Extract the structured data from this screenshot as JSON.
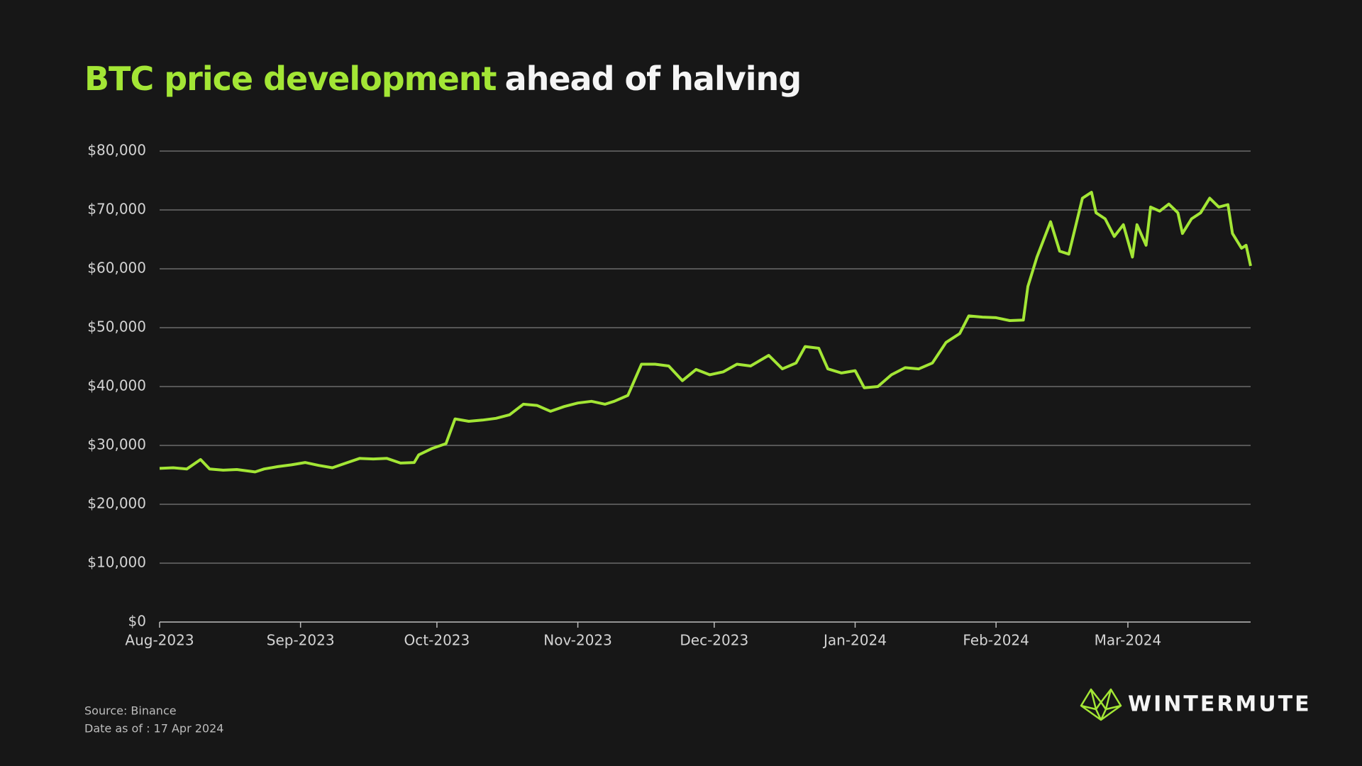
{
  "chart_data": {
    "type": "line",
    "title_highlight": "BTC price development",
    "title_rest": "ahead of halving",
    "x": [
      0,
      3,
      6,
      9,
      11,
      14,
      17,
      21,
      23,
      26,
      29,
      32,
      35,
      38,
      41,
      44,
      47,
      50,
      53,
      56,
      57,
      60,
      63,
      65,
      68,
      71,
      74,
      77,
      80,
      83,
      86,
      89,
      92,
      95,
      98,
      100,
      103,
      106,
      109,
      112,
      115,
      118,
      121,
      124,
      127,
      130,
      134,
      137,
      140,
      142,
      145,
      147,
      150,
      153,
      155,
      158,
      161,
      164,
      167,
      170,
      173,
      176,
      178,
      181,
      184,
      187,
      190,
      191,
      193,
      196,
      198,
      200,
      203,
      205,
      206,
      208,
      210,
      212,
      214,
      215,
      217,
      218,
      220,
      222,
      224,
      225,
      227,
      229,
      231,
      233,
      235,
      236,
      238,
      239,
      240
    ],
    "series": [
      {
        "name": "BTC",
        "color": "#a3e635",
        "values": [
          26100,
          26200,
          26000,
          27600,
          26000,
          25800,
          25900,
          25500,
          26000,
          26400,
          26700,
          27100,
          26600,
          26200,
          27000,
          27800,
          27700,
          27800,
          27000,
          27100,
          28400,
          29500,
          30300,
          34500,
          34100,
          34300,
          34600,
          35200,
          37000,
          36800,
          35800,
          36600,
          37200,
          37500,
          37000,
          37500,
          38500,
          43800,
          43800,
          43500,
          41000,
          42900,
          42000,
          42500,
          43800,
          43500,
          45300,
          43000,
          44000,
          46800,
          46500,
          43000,
          42300,
          42700,
          39800,
          40000,
          42000,
          43200,
          43000,
          44000,
          47500,
          49000,
          52000,
          51800,
          51700,
          51200,
          51300,
          57000,
          62000,
          68000,
          63000,
          62500,
          72000,
          73000,
          69500,
          68500,
          65500,
          67500,
          62000,
          67500,
          64000,
          70500,
          69800,
          71000,
          69500,
          66000,
          68500,
          69500,
          72000,
          70500,
          70900,
          66000,
          63500,
          64000,
          60500
        ]
      }
    ],
    "xlim": [
      0,
      240
    ],
    "xticks": [
      {
        "value": 0,
        "label": "Aug-2023"
      },
      {
        "value": 31,
        "label": "Sep-2023"
      },
      {
        "value": 61,
        "label": "Oct-2023"
      },
      {
        "value": 92,
        "label": "Nov-2023"
      },
      {
        "value": 122,
        "label": "Dec-2023"
      },
      {
        "value": 153,
        "label": "Jan-2024"
      },
      {
        "value": 184,
        "label": "Feb-2024"
      },
      {
        "value": 213,
        "label": "Mar-2024"
      }
    ],
    "ylim": [
      0,
      80000
    ],
    "yticks": [
      {
        "value": 0,
        "label": "$0"
      },
      {
        "value": 10000,
        "label": "$10,000"
      },
      {
        "value": 20000,
        "label": "$20,000"
      },
      {
        "value": 30000,
        "label": "$30,000"
      },
      {
        "value": 40000,
        "label": "$40,000"
      },
      {
        "value": 50000,
        "label": "$50,000"
      },
      {
        "value": 60000,
        "label": "$60,000"
      },
      {
        "value": 70000,
        "label": "$70,000"
      },
      {
        "value": 80000,
        "label": "$80,000"
      }
    ],
    "grid": true,
    "source": "Source: Binance",
    "date_note": "Date as of : 17 Apr 2024",
    "brand": "WINTERMUTE"
  }
}
